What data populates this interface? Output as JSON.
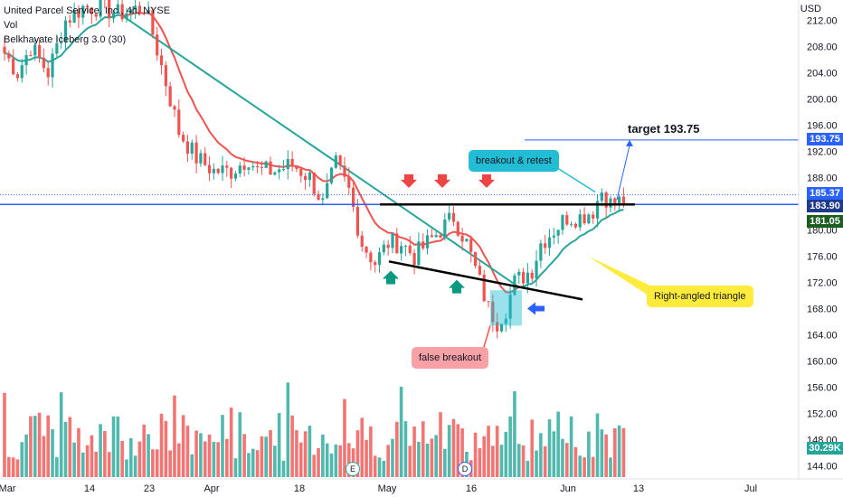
{
  "header": {
    "symbol_line": "United Parcel Service, Inc., 4h, NYSE",
    "vol_label": "Vol",
    "indicator_label": "Belkhayate Iceberg 3.0 (30)",
    "currency": "USD"
  },
  "price_badges": {
    "target": "193.75",
    "last": "185.37",
    "level": "183.90",
    "ma": "181.05",
    "volume": "30.29K"
  },
  "annotations": {
    "target_text": "target 193.75",
    "breakout_text": "breakout & retest",
    "triangle_text": "Right-angled triangle",
    "false_breakout_text": "false breakout"
  },
  "volume_markers": {
    "earnings": "E",
    "dividend": "D"
  },
  "colors": {
    "up": "#26a69a",
    "down": "#ef5350",
    "level_line": "#2962ff",
    "ma_red": "#ef5350",
    "ma_green": "#26a69a",
    "callout_cyan": "#22bcd4",
    "callout_yellow": "#ffeb3b",
    "callout_pink": "#f7a1a6"
  },
  "chart_data": {
    "type": "candlestick",
    "x_ticks": [
      "Mar",
      "14",
      "23",
      "Apr",
      "18",
      "May",
      "16",
      "Jun",
      "13",
      "Jul"
    ],
    "y_ticks": [
      144,
      148,
      152,
      156,
      160,
      164,
      168,
      172,
      176,
      180,
      184,
      188,
      192,
      196,
      200,
      204,
      208,
      212
    ],
    "ylim": [
      142,
      214
    ],
    "waypoints": [
      [
        0,
        207
      ],
      [
        3,
        204
      ],
      [
        6,
        208
      ],
      [
        10,
        204
      ],
      [
        14,
        212
      ],
      [
        18,
        214
      ],
      [
        22,
        214
      ],
      [
        26,
        213
      ],
      [
        32,
        214
      ],
      [
        34,
        210
      ],
      [
        36,
        205
      ],
      [
        38,
        200
      ],
      [
        40,
        195
      ],
      [
        44,
        191
      ],
      [
        48,
        189
      ],
      [
        52,
        189
      ],
      [
        56,
        191
      ],
      [
        58,
        189
      ],
      [
        62,
        189
      ],
      [
        66,
        190
      ],
      [
        70,
        188
      ],
      [
        73,
        184
      ],
      [
        76,
        190
      ],
      [
        79,
        186
      ],
      [
        82,
        178
      ],
      [
        85,
        175
      ],
      [
        88,
        178
      ],
      [
        91,
        178
      ],
      [
        94,
        176
      ],
      [
        97,
        178
      ],
      [
        100,
        180
      ],
      [
        103,
        182
      ],
      [
        106,
        178
      ],
      [
        109,
        172
      ],
      [
        111,
        168
      ],
      [
        113,
        166
      ],
      [
        115,
        168
      ],
      [
        117,
        172
      ],
      [
        119,
        173
      ],
      [
        121,
        174
      ],
      [
        123,
        178
      ],
      [
        126,
        180
      ],
      [
        129,
        182
      ],
      [
        132,
        182
      ],
      [
        135,
        183
      ],
      [
        137,
        186
      ],
      [
        139,
        184
      ],
      [
        142,
        184.5
      ]
    ],
    "level_line": 183.9,
    "target": 193.75,
    "last_price": 185.37,
    "ma_value": 181.05,
    "last_volume": "30.29K"
  }
}
